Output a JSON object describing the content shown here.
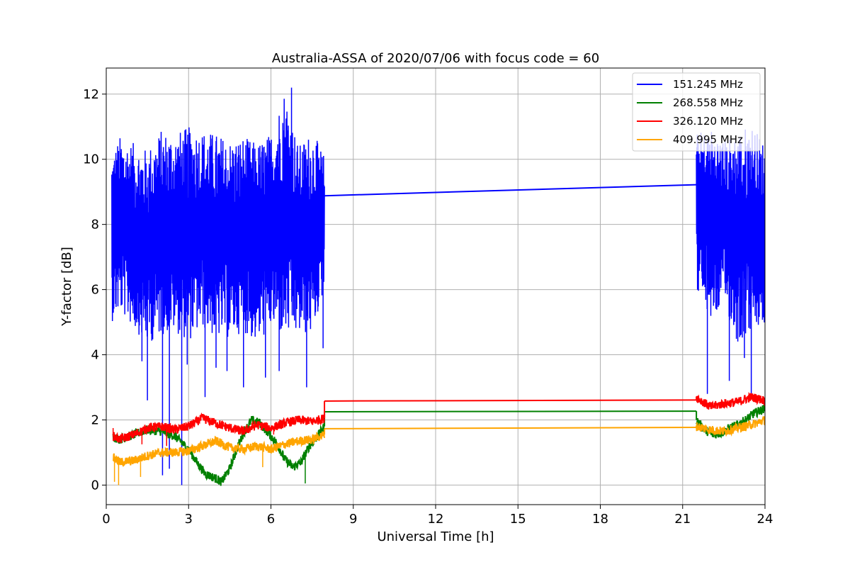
{
  "chart_data": {
    "type": "line",
    "title": "Australia-ASSA of 2020/07/06 with focus code = 60",
    "xlabel": "Universal Time [h]",
    "ylabel": "Y-factor [dB]",
    "xlim": [
      0,
      24
    ],
    "ylim": [
      -0.6,
      12.8
    ],
    "xticks": [
      0,
      3,
      6,
      9,
      12,
      15,
      18,
      21,
      24
    ],
    "yticks": [
      0,
      2,
      4,
      6,
      8,
      10,
      12
    ],
    "grid": true,
    "legend_position": "top-right",
    "series": [
      {
        "name": "151.245 MHz",
        "color": "#0000ff",
        "band": {
          "segments": [
            {
              "x": [
                0.2,
                0.5,
                1.0,
                1.5,
                2.0,
                2.5,
                3.0,
                3.5,
                4.0,
                4.5,
                5.0,
                5.5,
                6.0,
                6.5,
                7.0,
                7.5,
                7.95
              ],
              "upper": [
                10.2,
                10.7,
                10.5,
                10.3,
                10.9,
                10.8,
                11.0,
                10.9,
                10.8,
                10.6,
                10.7,
                10.5,
                10.8,
                12.2,
                10.4,
                10.9,
                10.1
              ],
              "lower": [
                5.0,
                5.3,
                4.8,
                4.3,
                4.6,
                4.7,
                4.4,
                4.8,
                4.5,
                4.5,
                4.7,
                4.3,
                4.8,
                4.5,
                4.6,
                4.6,
                6.0
              ]
            },
            {
              "x": [
                21.5,
                22.0,
                22.5,
                23.0,
                23.5,
                24.0
              ],
              "upper": [
                10.8,
                11.0,
                10.6,
                10.9,
                11.1,
                10.5
              ],
              "lower": [
                6.0,
                5.0,
                5.5,
                4.3,
                4.7,
                4.8
              ]
            }
          ]
        },
        "spikes": [
          [
            1.3,
            3.8
          ],
          [
            1.5,
            2.6
          ],
          [
            2.05,
            0.3
          ],
          [
            2.3,
            0.5
          ],
          [
            2.75,
            0.0
          ],
          [
            2.95,
            3.7
          ],
          [
            3.6,
            2.7
          ],
          [
            4.0,
            3.6
          ],
          [
            4.4,
            3.5
          ],
          [
            5.0,
            3.0
          ],
          [
            5.8,
            3.3
          ],
          [
            6.3,
            3.5
          ],
          [
            6.75,
            12.2
          ],
          [
            7.3,
            3.0
          ],
          [
            7.9,
            4.2
          ],
          [
            21.9,
            2.8
          ],
          [
            22.7,
            3.2
          ],
          [
            23.25,
            3.9
          ],
          [
            23.5,
            2.7
          ]
        ],
        "connector": {
          "x": [
            7.95,
            21.5
          ],
          "y": [
            8.88,
            9.22
          ]
        }
      },
      {
        "name": "268.558 MHz",
        "color": "#008000",
        "x": [
          0.25,
          0.5,
          1.0,
          1.5,
          2.0,
          2.5,
          3.0,
          3.3,
          3.6,
          4.0,
          4.2,
          4.5,
          4.8,
          5.0,
          5.3,
          5.6,
          5.9,
          6.2,
          6.5,
          6.8,
          7.1,
          7.4,
          7.7,
          7.95,
          21.5,
          21.8,
          22.1,
          22.4,
          22.7,
          23.0,
          23.3,
          23.6,
          24.0
        ],
        "y": [
          1.5,
          1.4,
          1.55,
          1.7,
          1.65,
          1.5,
          1.1,
          0.7,
          0.35,
          0.2,
          0.1,
          0.5,
          1.2,
          1.6,
          2.0,
          1.9,
          1.6,
          1.3,
          0.8,
          0.55,
          0.7,
          1.2,
          1.5,
          1.8,
          2.0,
          1.7,
          1.55,
          1.6,
          1.75,
          1.85,
          2.0,
          2.2,
          2.35
        ],
        "spikes": [
          [
            7.25,
            0.05
          ]
        ],
        "connector": {
          "x": [
            7.95,
            21.5
          ],
          "y": [
            2.25,
            2.27
          ]
        }
      },
      {
        "name": "326.120 MHz",
        "color": "#ff0000",
        "x": [
          0.25,
          0.5,
          1.0,
          1.5,
          2.0,
          2.5,
          3.0,
          3.5,
          4.0,
          4.5,
          5.0,
          5.5,
          6.0,
          6.5,
          7.0,
          7.5,
          7.95,
          21.5,
          22.0,
          22.5,
          23.0,
          23.5,
          24.0
        ],
        "y": [
          1.5,
          1.4,
          1.55,
          1.75,
          1.8,
          1.7,
          1.8,
          2.05,
          1.9,
          1.75,
          1.65,
          1.85,
          1.75,
          1.9,
          2.0,
          1.95,
          2.05,
          2.7,
          2.4,
          2.5,
          2.55,
          2.7,
          2.6
        ],
        "spikes": [
          [
            0.25,
            1.75
          ],
          [
            1.3,
            1.25
          ],
          [
            2.2,
            1.2
          ],
          [
            6.1,
            1.55
          ]
        ],
        "connector": {
          "x": [
            7.95,
            21.5
          ],
          "y": [
            2.58,
            2.61
          ]
        }
      },
      {
        "name": "409.995 MHz",
        "color": "#ffa500",
        "x": [
          0.25,
          0.5,
          1.0,
          1.5,
          2.0,
          2.5,
          3.0,
          3.5,
          4.0,
          4.5,
          5.0,
          5.5,
          6.0,
          6.5,
          7.0,
          7.5,
          7.95,
          21.5,
          22.0,
          22.5,
          23.0,
          23.5,
          24.0
        ],
        "y": [
          0.85,
          0.7,
          0.75,
          0.9,
          1.0,
          1.0,
          1.05,
          1.2,
          1.35,
          1.15,
          1.1,
          1.2,
          1.1,
          1.25,
          1.35,
          1.4,
          1.55,
          1.8,
          1.7,
          1.65,
          1.75,
          1.85,
          2.0
        ],
        "spikes": [
          [
            0.3,
            0.1
          ],
          [
            0.45,
            0.0
          ],
          [
            1.25,
            0.25
          ],
          [
            5.7,
            0.55
          ]
        ],
        "connector": {
          "x": [
            7.95,
            21.5
          ],
          "y": [
            1.73,
            1.77
          ]
        }
      }
    ]
  }
}
